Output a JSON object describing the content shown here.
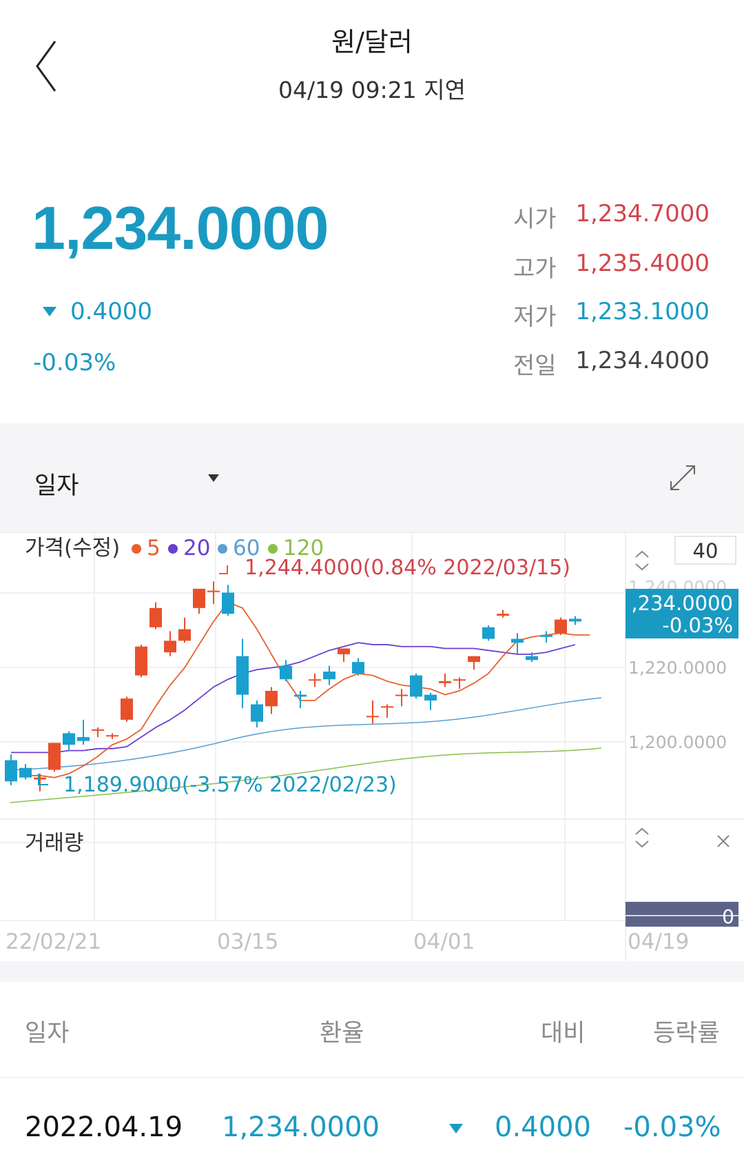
{
  "header": {
    "title": "원/달러",
    "subtitle": "04/19 09:21 지연"
  },
  "quote": {
    "price": "1,234.0000",
    "change": "0.4000",
    "change_pct": "-0.03%",
    "stats": [
      {
        "label": "시가",
        "value": "1,234.7000",
        "color": "#d2454c"
      },
      {
        "label": "고가",
        "value": "1,235.4000",
        "color": "#d2454c"
      },
      {
        "label": "저가",
        "value": "1,233.1000",
        "color": "#1a9ac2"
      },
      {
        "label": "전일",
        "value": "1,234.4000",
        "color": "#444444"
      }
    ]
  },
  "period": {
    "selected": "일자"
  },
  "chart": {
    "legend_label": "가격(수정)",
    "ma_legend": [
      {
        "label": "5",
        "color": "#e8602c"
      },
      {
        "label": "20",
        "color": "#6a3fd1"
      },
      {
        "label": "60",
        "color": "#5b9fd3"
      },
      {
        "label": "120",
        "color": "#8bbf4a"
      }
    ],
    "zoom_value": "40",
    "current_price_tag": ",234.0000",
    "current_pct_tag": "-0.03%",
    "high_annotation": "1,244.4000(0.84% 2022/03/15)",
    "low_annotation": "1,189.9000(-3.57% 2022/02/23)",
    "y_tick_labels": [
      "1,220.0000",
      "1,200.0000"
    ],
    "y_tick_partial": "1,240.0000",
    "volume_label": "거래량",
    "volume_value": "0",
    "x_labels": [
      "22/02/21",
      "03/15",
      "04/01",
      "04/19"
    ]
  },
  "chart_data": {
    "type": "candlestick",
    "ylim": [
      1182,
      1250
    ],
    "candles": [
      {
        "o": 1198.0,
        "h": 1199.5,
        "l": 1191.5,
        "c": 1192.5
      },
      {
        "o": 1196.0,
        "h": 1197.0,
        "l": 1193.0,
        "c": 1193.5
      },
      {
        "o": 1193.0,
        "h": 1194.5,
        "l": 1189.9,
        "c": 1193.5
      },
      {
        "o": 1195.5,
        "h": 1202.5,
        "l": 1195.0,
        "c": 1202.5
      },
      {
        "o": 1205.0,
        "h": 1205.5,
        "l": 1200.5,
        "c": 1202.0
      },
      {
        "o": 1204.0,
        "h": 1208.5,
        "l": 1202.0,
        "c": 1203.0
      },
      {
        "o": 1206.0,
        "h": 1206.5,
        "l": 1204.0,
        "c": 1206.0
      },
      {
        "o": 1204.5,
        "h": 1205.0,
        "l": 1203.5,
        "c": 1204.5
      },
      {
        "o": 1208.5,
        "h": 1214.5,
        "l": 1208.0,
        "c": 1214.0
      },
      {
        "o": 1220.0,
        "h": 1228.0,
        "l": 1219.5,
        "c": 1227.5
      },
      {
        "o": 1232.5,
        "h": 1239.0,
        "l": 1232.0,
        "c": 1237.5
      },
      {
        "o": 1226.0,
        "h": 1231.5,
        "l": 1225.0,
        "c": 1229.0
      },
      {
        "o": 1229.0,
        "h": 1235.0,
        "l": 1228.5,
        "c": 1232.0
      },
      {
        "o": 1237.5,
        "h": 1242.0,
        "l": 1236.0,
        "c": 1242.5
      },
      {
        "o": 1242.0,
        "h": 1244.4,
        "l": 1238.5,
        "c": 1242.0
      },
      {
        "o": 1241.5,
        "h": 1243.5,
        "l": 1235.5,
        "c": 1236.0
      },
      {
        "o": 1225.0,
        "h": 1229.5,
        "l": 1211.5,
        "c": 1215.0
      },
      {
        "o": 1212.5,
        "h": 1213.5,
        "l": 1206.5,
        "c": 1208.0
      },
      {
        "o": 1212.0,
        "h": 1217.0,
        "l": 1210.0,
        "c": 1216.0
      },
      {
        "o": 1222.5,
        "h": 1224.0,
        "l": 1218.5,
        "c": 1219.0
      },
      {
        "o": 1215.0,
        "h": 1216.0,
        "l": 1211.5,
        "c": 1214.5
      },
      {
        "o": 1219.0,
        "h": 1220.5,
        "l": 1217.0,
        "c": 1219.0
      },
      {
        "o": 1221.0,
        "h": 1222.5,
        "l": 1217.5,
        "c": 1219.0
      },
      {
        "o": 1225.5,
        "h": 1227.0,
        "l": 1223.5,
        "c": 1227.0
      },
      {
        "o": 1223.5,
        "h": 1224.5,
        "l": 1220.0,
        "c": 1220.5
      },
      {
        "o": 1209.5,
        "h": 1213.5,
        "l": 1207.5,
        "c": 1209.5
      },
      {
        "o": 1212.0,
        "h": 1212.5,
        "l": 1209.0,
        "c": 1212.0
      },
      {
        "o": 1215.0,
        "h": 1216.5,
        "l": 1212.0,
        "c": 1215.0
      },
      {
        "o": 1220.0,
        "h": 1220.5,
        "l": 1214.0,
        "c": 1214.5
      },
      {
        "o": 1215.0,
        "h": 1215.5,
        "l": 1211.0,
        "c": 1213.5
      },
      {
        "o": 1218.0,
        "h": 1220.5,
        "l": 1217.0,
        "c": 1218.5
      },
      {
        "o": 1219.0,
        "h": 1219.5,
        "l": 1216.5,
        "c": 1219.0
      },
      {
        "o": 1223.5,
        "h": 1225.0,
        "l": 1221.5,
        "c": 1225.0
      },
      {
        "o": 1232.5,
        "h": 1233.0,
        "l": 1229.0,
        "c": 1229.5
      },
      {
        "o": 1235.5,
        "h": 1237.0,
        "l": 1235.0,
        "c": 1236.0
      },
      {
        "o": 1229.5,
        "h": 1231.0,
        "l": 1225.5,
        "c": 1228.5
      },
      {
        "o": 1225.0,
        "h": 1226.0,
        "l": 1223.5,
        "c": 1224.0
      },
      {
        "o": 1230.5,
        "h": 1231.5,
        "l": 1228.5,
        "c": 1230.0
      },
      {
        "o": 1231.0,
        "h": 1235.0,
        "l": 1230.5,
        "c": 1234.5
      },
      {
        "o": 1234.7,
        "h": 1235.4,
        "l": 1233.1,
        "c": 1234.0
      }
    ],
    "ma5": [
      1194,
      1194,
      1193.5,
      1194.5,
      1196.5,
      1199,
      1202,
      1203.5,
      1206,
      1212,
      1217.5,
      1222,
      1228,
      1234,
      1239,
      1237.5,
      1232,
      1225.5,
      1219,
      1213.5,
      1213.5,
      1216.5,
      1219,
      1220.5,
      1220,
      1218.5,
      1217.5,
      1217,
      1216.5,
      1215,
      1216,
      1218,
      1220.5,
      1225,
      1229,
      1230,
      1230.5,
      1231,
      1230.5,
      1230.5
    ],
    "ma20": [
      1200,
      1200,
      1200,
      1200,
      1200.5,
      1200.5,
      1201,
      1201,
      1201.5,
      1204,
      1206.5,
      1208.5,
      1211,
      1214,
      1217,
      1219,
      1220.5,
      1221.5,
      1222,
      1222.5,
      1223.5,
      1225,
      1226.5,
      1227.5,
      1228.5,
      1228,
      1228,
      1227.5,
      1227.5,
      1227.5,
      1227,
      1227,
      1227,
      1226.5,
      1226,
      1225.5,
      1225.5,
      1226,
      1227,
      1228
    ]
  },
  "table": {
    "headers": {
      "date": "일자",
      "rate": "환율",
      "diff": "대비",
      "pct": "등락률"
    },
    "rows": [
      {
        "date": "2022.04.19",
        "rate": "1,234.0000",
        "diff": "0.4000",
        "pct": "-0.03%"
      }
    ]
  }
}
